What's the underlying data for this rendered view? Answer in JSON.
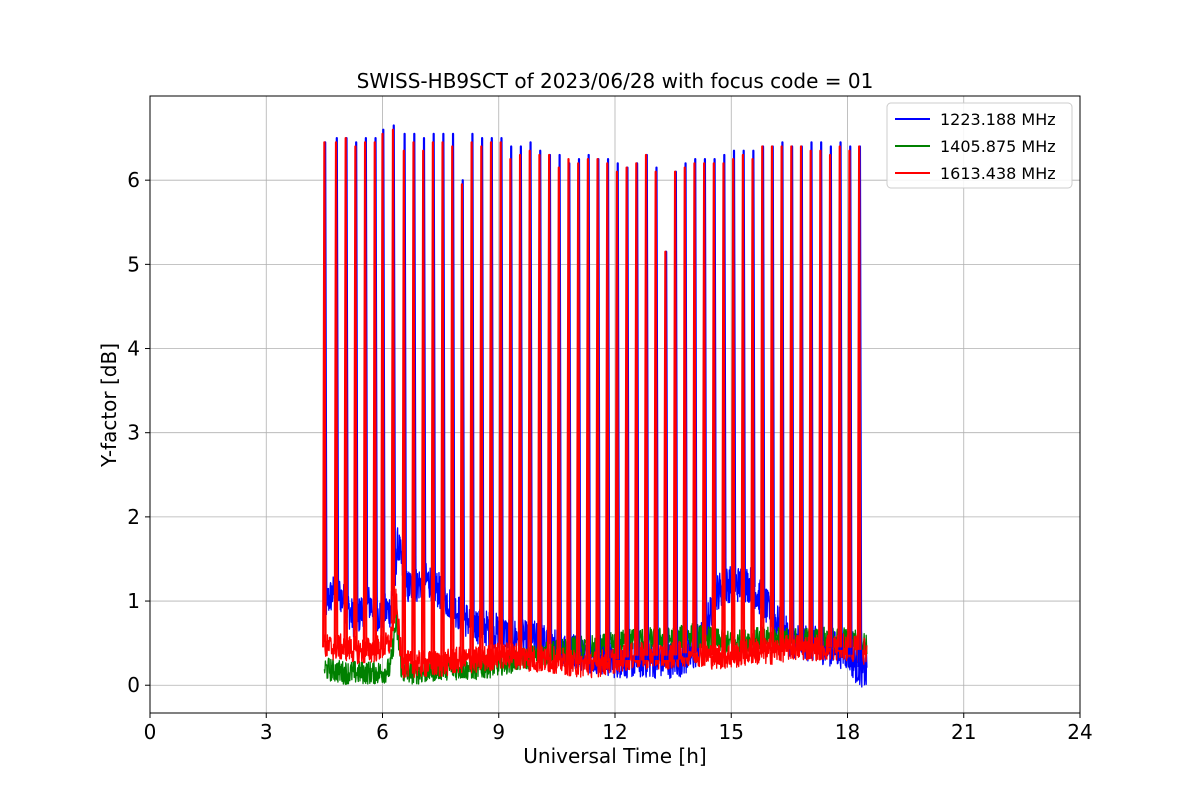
{
  "chart_data": {
    "type": "line",
    "title": "SWISS-HB9SCT of 2023/06/28 with focus code = 01",
    "xlabel": "Universal Time [h]",
    "ylabel": "Y-factor [dB]",
    "xlim": [
      0,
      24
    ],
    "ylim": [
      -0.33,
      7.0
    ],
    "x_ticks": [
      0,
      3,
      6,
      9,
      12,
      15,
      18,
      21,
      24
    ],
    "y_ticks": [
      0,
      1,
      2,
      3,
      4,
      5,
      6
    ],
    "grid": true,
    "legend_position": "top-right",
    "series": [
      {
        "name": "1223.188 MHz",
        "color": "#0000ff",
        "x": [
          4.5,
          4.8,
          5.0,
          5.3,
          5.6,
          5.9,
          6.2,
          6.4,
          6.6,
          6.9,
          7.2,
          7.5,
          7.8,
          8.1,
          8.5,
          8.9,
          9.3,
          9.7,
          10.0,
          10.5,
          11.0,
          11.5,
          12.0,
          12.5,
          13.0,
          13.5,
          14.0,
          14.3,
          14.6,
          14.9,
          15.2,
          15.5,
          15.8,
          16.1,
          16.5,
          17.0,
          17.5,
          18.0,
          18.2,
          18.5
        ],
        "y": [
          0.95,
          1.15,
          1.0,
          0.75,
          1.0,
          0.85,
          0.9,
          1.7,
          1.15,
          1.2,
          1.25,
          1.1,
          0.95,
          0.8,
          0.7,
          0.65,
          0.6,
          0.55,
          0.55,
          0.45,
          0.4,
          0.35,
          0.3,
          0.3,
          0.3,
          0.3,
          0.35,
          0.6,
          1.1,
          1.2,
          1.2,
          1.2,
          1.0,
          0.8,
          0.55,
          0.5,
          0.45,
          0.4,
          0.25,
          0.15
        ]
      },
      {
        "name": "1405.875 MHz",
        "color": "#008000",
        "x": [
          4.5,
          5.0,
          5.5,
          6.0,
          6.2,
          6.35,
          6.5,
          7.0,
          7.5,
          8.0,
          8.5,
          9.0,
          9.5,
          10.0,
          10.5,
          11.0,
          11.5,
          12.0,
          12.5,
          13.0,
          13.5,
          14.0,
          14.5,
          15.0,
          15.5,
          16.0,
          16.5,
          17.0,
          17.5,
          18.0,
          18.5
        ],
        "y": [
          0.2,
          0.15,
          0.15,
          0.15,
          0.2,
          0.75,
          0.15,
          0.15,
          0.2,
          0.2,
          0.2,
          0.25,
          0.3,
          0.35,
          0.4,
          0.45,
          0.45,
          0.5,
          0.55,
          0.55,
          0.55,
          0.6,
          0.55,
          0.5,
          0.55,
          0.55,
          0.55,
          0.55,
          0.55,
          0.55,
          0.5
        ]
      },
      {
        "name": "1613.438 MHz",
        "color": "#ff0000",
        "x": [
          4.5,
          5.0,
          5.5,
          6.0,
          6.2,
          6.35,
          6.5,
          7.0,
          7.5,
          8.0,
          8.5,
          9.0,
          9.5,
          10.0,
          10.5,
          11.0,
          11.5,
          12.0,
          12.5,
          13.0,
          13.5,
          14.0,
          14.5,
          15.0,
          15.5,
          16.0,
          16.5,
          17.0,
          17.5,
          18.0,
          18.5
        ],
        "y": [
          0.45,
          0.45,
          0.4,
          0.45,
          0.5,
          1.0,
          0.25,
          0.25,
          0.25,
          0.3,
          0.3,
          0.35,
          0.35,
          0.3,
          0.3,
          0.25,
          0.25,
          0.3,
          0.35,
          0.35,
          0.35,
          0.4,
          0.35,
          0.35,
          0.4,
          0.4,
          0.45,
          0.45,
          0.45,
          0.45,
          0.4
        ]
      }
    ],
    "calibration_spikes": {
      "x": [
        4.5,
        4.8,
        5.05,
        5.3,
        5.55,
        5.8,
        6.0,
        6.27,
        6.55,
        6.8,
        7.05,
        7.3,
        7.55,
        7.8,
        8.05,
        8.3,
        8.55,
        8.8,
        9.05,
        9.3,
        9.55,
        9.8,
        10.05,
        10.3,
        10.55,
        10.8,
        11.05,
        11.3,
        11.55,
        11.8,
        12.05,
        12.3,
        12.55,
        12.8,
        13.05,
        13.3,
        13.55,
        13.8,
        14.05,
        14.3,
        14.55,
        14.8,
        15.05,
        15.3,
        15.55,
        15.8,
        16.05,
        16.3,
        16.55,
        16.8,
        17.05,
        17.3,
        17.55,
        17.8,
        18.05,
        18.3
      ],
      "peak_blue": [
        6.45,
        6.5,
        6.5,
        6.45,
        6.5,
        6.5,
        6.6,
        6.65,
        6.55,
        6.55,
        6.5,
        6.55,
        6.55,
        6.55,
        6.0,
        6.55,
        6.5,
        6.5,
        6.5,
        6.4,
        6.4,
        6.45,
        6.35,
        6.3,
        6.3,
        6.2,
        6.25,
        6.3,
        6.25,
        6.25,
        6.2,
        6.15,
        6.2,
        6.3,
        6.15,
        5.15,
        6.1,
        6.2,
        6.25,
        6.25,
        6.25,
        6.3,
        6.35,
        6.35,
        6.35,
        6.4,
        6.4,
        6.45,
        6.4,
        6.4,
        6.45,
        6.45,
        6.4,
        6.45,
        6.4,
        6.4
      ],
      "peak_red": [
        6.45,
        6.45,
        6.5,
        6.4,
        6.45,
        6.45,
        6.55,
        6.6,
        6.35,
        6.45,
        6.35,
        6.45,
        6.45,
        6.4,
        5.95,
        6.45,
        6.4,
        6.45,
        6.45,
        6.25,
        6.3,
        6.35,
        6.3,
        6.3,
        6.15,
        6.25,
        6.2,
        6.25,
        6.25,
        6.2,
        6.1,
        6.15,
        6.2,
        6.3,
        6.1,
        5.15,
        6.1,
        6.15,
        6.2,
        6.2,
        6.2,
        6.2,
        6.25,
        6.3,
        6.25,
        6.4,
        6.4,
        6.4,
        6.4,
        6.4,
        6.35,
        6.35,
        6.3,
        6.4,
        6.35,
        6.4
      ]
    }
  }
}
